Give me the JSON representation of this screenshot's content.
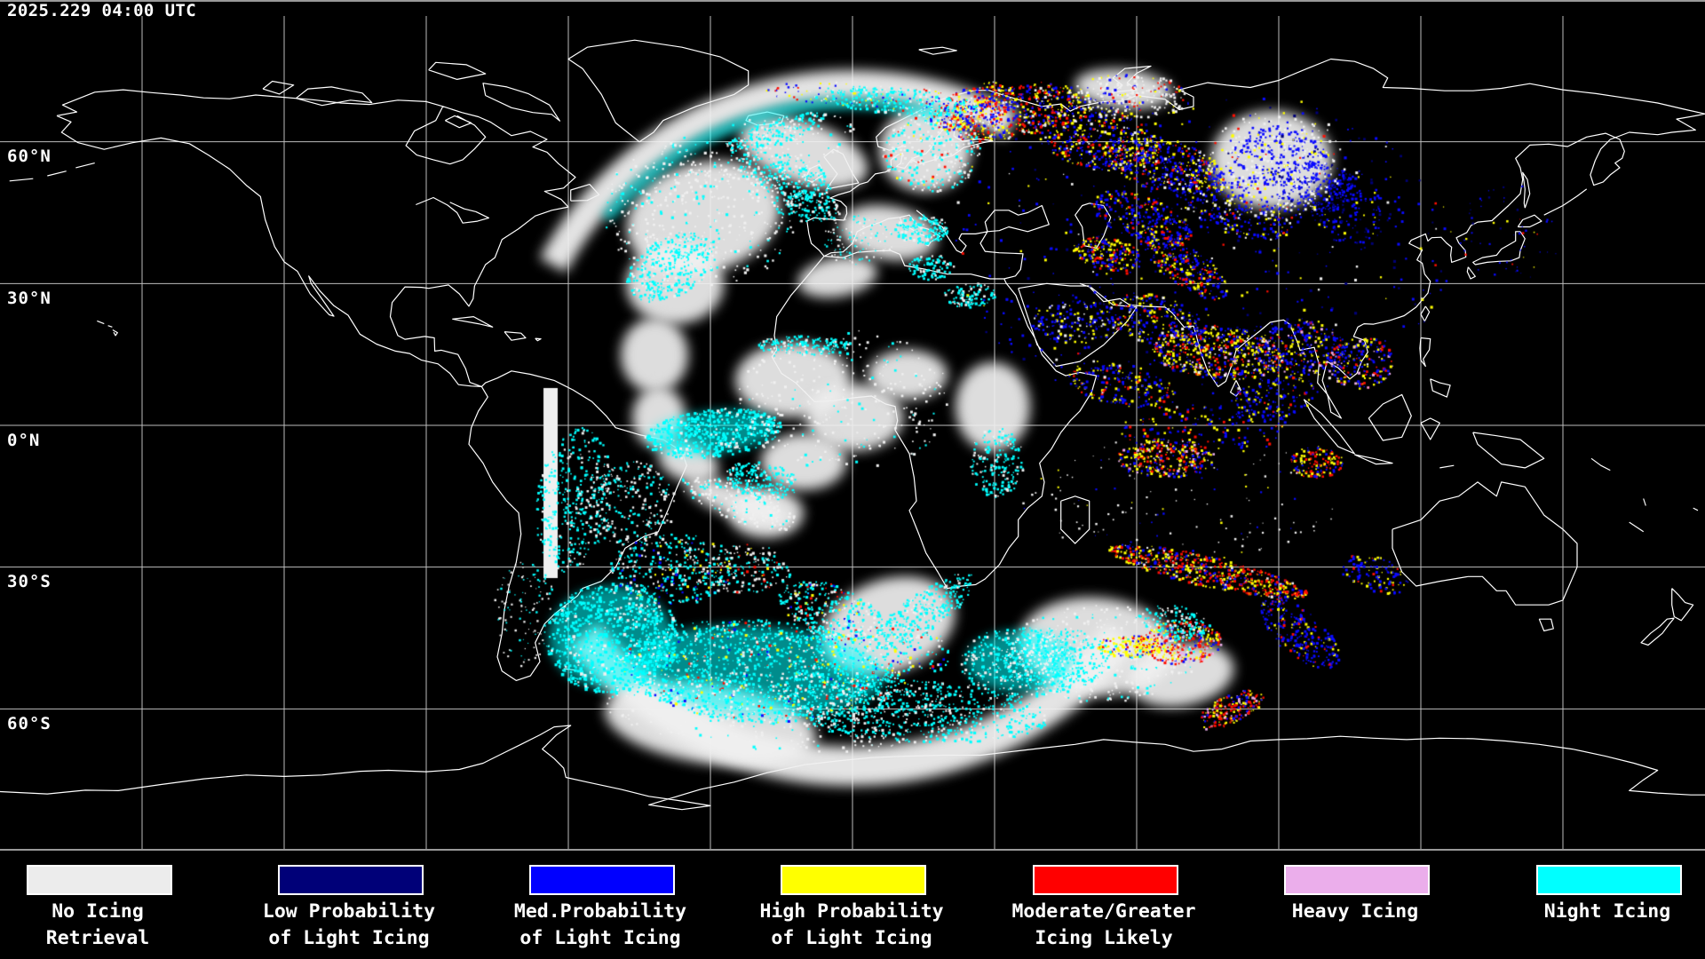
{
  "header": {
    "timestamp": "2025.229 04:00 UTC"
  },
  "map": {
    "projection": "plate-carree global (180W-180E, 90N-90S)",
    "grid": {
      "lon_step_deg": 30,
      "lat_step_deg": 30
    },
    "lat_labels": [
      {
        "text": "60°N"
      },
      {
        "text": "30°N"
      },
      {
        "text": "0°N"
      },
      {
        "text": "30°S"
      },
      {
        "text": "60°S"
      }
    ],
    "colors": {
      "background": "#000000",
      "coastline": "#FFFFFF",
      "gridline": "#BDBDBD",
      "border": "#999999"
    }
  },
  "legend": {
    "items": [
      {
        "line1": "No Icing",
        "line2": "Retrieval",
        "color": "#ECECEC"
      },
      {
        "line1": "Low Probability",
        "line2": "of Light Icing",
        "color": "#000078"
      },
      {
        "line1": "Med.Probability",
        "line2": "of Light Icing",
        "color": "#0000FF"
      },
      {
        "line1": "High Probability",
        "line2": "of Light Icing",
        "color": "#FFFF00"
      },
      {
        "line1": "Moderate/Greater",
        "line2": "Icing Likely",
        "color": "#FF0000"
      },
      {
        "line1": "Heavy Icing",
        "line2": "",
        "color": "#EBAEEB"
      },
      {
        "line1": "Night Icing",
        "line2": "",
        "color": "#00FFFF"
      }
    ]
  }
}
